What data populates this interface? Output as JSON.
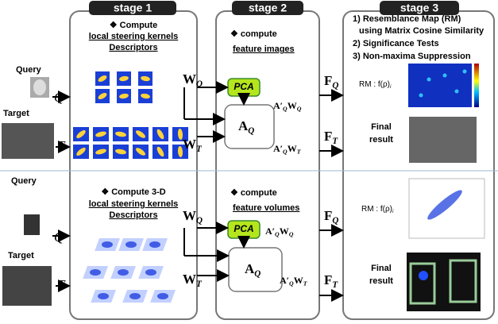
{
  "stages": [
    "stage 1",
    "stage 2",
    "stage 3"
  ],
  "inputs": {
    "top": {
      "query": "Query",
      "q": "Q",
      "target": "Target",
      "t": "T"
    },
    "bottom": {
      "query": "Query",
      "q": "Q",
      "target": "Target",
      "t": "T"
    }
  },
  "stage1": {
    "top": [
      "❖ Compute",
      "local steering kernels",
      "Descriptors"
    ],
    "bottom": [
      "❖ Compute 3-D",
      "local steering kernels",
      "Descriptors"
    ]
  },
  "stage2": {
    "top": [
      "❖ compute",
      "feature images"
    ],
    "bottom": [
      "❖ compute",
      "feature volumes"
    ]
  },
  "stage3": {
    "steps": [
      "1) Resemblance Map (RM)",
      "using Matrix Cosine Similarity",
      "2) Significance Tests",
      "3) Non-maxima Suppression"
    ],
    "top": {
      "rm": [
        "RM : f(ρ)",
        "i"
      ],
      "final": [
        "Final",
        "result"
      ]
    },
    "bottom": {
      "rm": [
        "RM : f(ρ)",
        "i"
      ],
      "final": [
        "Final",
        "result"
      ]
    }
  },
  "math": {
    "pca": "PCA",
    "top": {
      "wq": [
        "W",
        "Q"
      ],
      "wt": [
        "W",
        "T"
      ],
      "aq": [
        "A",
        "Q"
      ],
      "aqwq": [
        "A′",
        "Q",
        "W",
        "Q"
      ],
      "aqwt": [
        "A′",
        "Q",
        "W",
        "T"
      ],
      "fq": [
        "F",
        "Q"
      ],
      "ft": [
        "F",
        "T"
      ]
    },
    "bottom": {
      "wq": [
        "W",
        "Q"
      ],
      "wt": [
        "W",
        "T"
      ],
      "aq": [
        "A",
        "Q"
      ],
      "aqwq": [
        "A′",
        "Q",
        "W",
        "Q"
      ],
      "aqwt": [
        "A′",
        "Q",
        "W",
        "T"
      ],
      "fq": [
        "F",
        "Q"
      ],
      "ft": [
        "F",
        "T"
      ]
    }
  }
}
